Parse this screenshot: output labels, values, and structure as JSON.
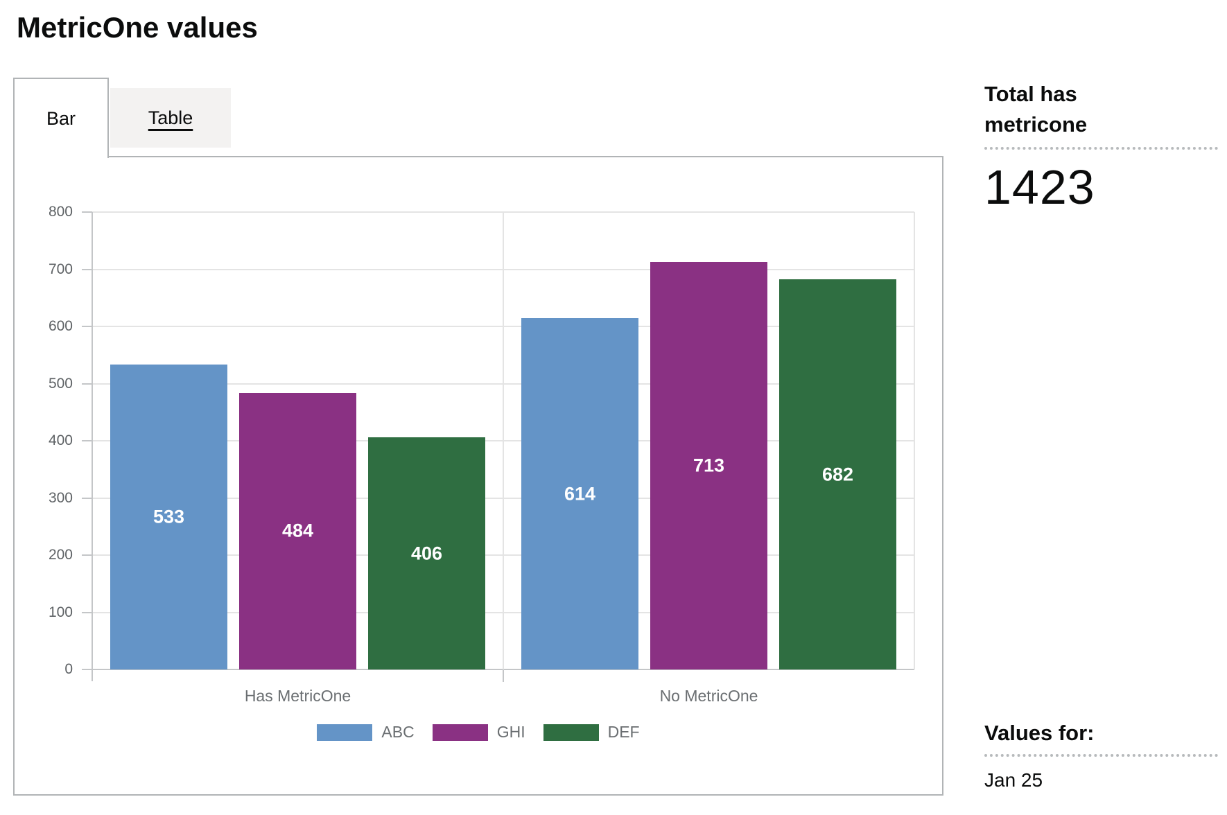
{
  "title": "MetricOne values",
  "tabs": {
    "bar_label": "Bar",
    "table_label": "Table",
    "selected": "Bar"
  },
  "sidebar": {
    "total_heading": "Total has metricone",
    "total_value": "1423",
    "values_for_heading": "Values for:",
    "values_for_value": "Jan 25"
  },
  "chart_data": {
    "type": "bar",
    "categories": [
      "Has MetricOne",
      "No MetricOne"
    ],
    "series": [
      {
        "name": "ABC",
        "color": "#6494c7",
        "values": [
          533,
          614
        ]
      },
      {
        "name": "GHI",
        "color": "#8a3183",
        "values": [
          484,
          713
        ]
      },
      {
        "name": "DEF",
        "color": "#2f6e41",
        "values": [
          406,
          682
        ]
      }
    ],
    "ylim": [
      0,
      800
    ],
    "yticks": [
      0,
      100,
      200,
      300,
      400,
      500,
      600,
      700,
      800
    ],
    "grid": true,
    "legend_position": "bottom",
    "bar_value_labels_shown": true
  },
  "colors": {
    "panel_border": "#b1b4b6",
    "tab_inactive_bg": "#f3f2f1",
    "gridline": "#e4e4e4",
    "axis": "#c4c6c8",
    "axis_text": "#6a6e71",
    "text": "#0b0c0c"
  }
}
